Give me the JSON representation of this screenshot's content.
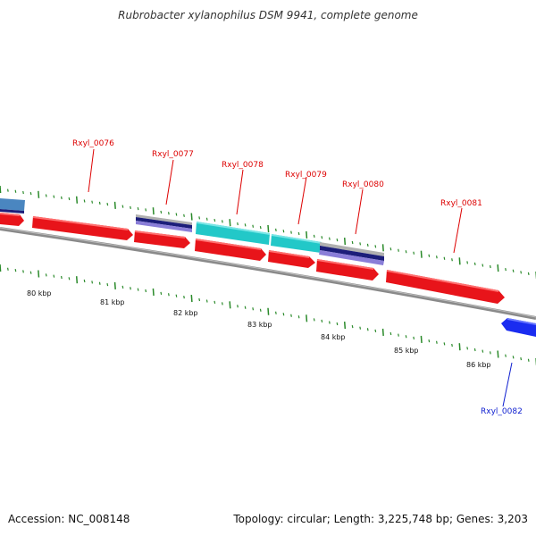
{
  "title": "Rubrobacter xylanophilus DSM 9941, complete genome",
  "footer": {
    "accession": "Accession: NC_008148",
    "summary": "Topology: circular; Length: 3,225,748 bp; Genes: 3,203"
  },
  "colors": {
    "forward_cds": "#e8141a",
    "reverse_cds": "#1a2cf0",
    "rna_cyan": "#22c8c8",
    "rna_navy": "#1c1e7a",
    "rna_lavender": "#8a7ed8",
    "rna_grey": "#b0b0b0",
    "steelblue": "#4a86c0",
    "backbone": "#8a8a8a",
    "tick_green": "#2a8a2a",
    "label_red": "#dd0000",
    "label_blue": "#1020d0"
  },
  "gene_labels": [
    {
      "text": "Rxyl_0076",
      "strand": "forward"
    },
    {
      "text": "Rxyl_0077",
      "strand": "forward"
    },
    {
      "text": "Rxyl_0078",
      "strand": "forward"
    },
    {
      "text": "Rxyl_0079",
      "strand": "forward"
    },
    {
      "text": "Rxyl_0080",
      "strand": "forward"
    },
    {
      "text": "Rxyl_0081",
      "strand": "forward"
    },
    {
      "text": "Rxyl_0082",
      "strand": "reverse"
    }
  ],
  "scale_labels": [
    "80 kbp",
    "81 kbp",
    "82 kbp",
    "83 kbp",
    "84 kbp",
    "85 kbp",
    "86 kbp"
  ]
}
